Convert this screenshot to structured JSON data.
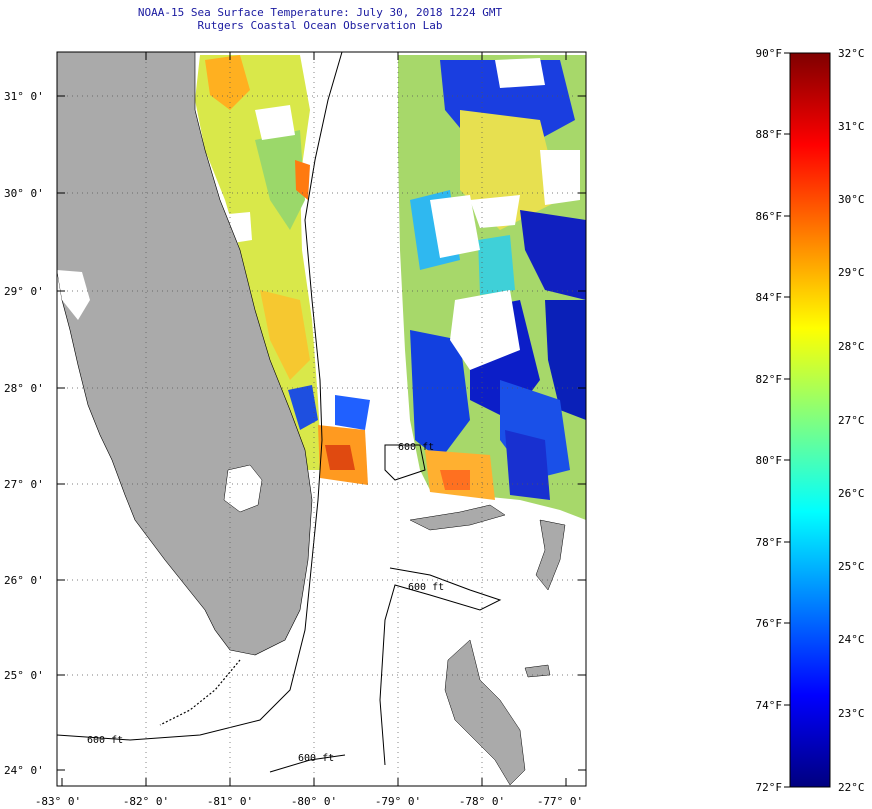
{
  "title": {
    "line1": "NOAA-15 Sea Surface Temperature:  July 30, 2018 1224 GMT",
    "line2": "Rutgers Coastal Ocean Observation Lab"
  },
  "map": {
    "lon_labels": [
      "-83° 0'",
      "-82° 0'",
      "-81° 0'",
      "-80° 0'",
      "-79° 0'",
      "-78° 0'",
      "-77° 0'"
    ],
    "lat_labels": [
      "31° 0'",
      "30° 0'",
      "29° 0'",
      "28° 0'",
      "27° 0'",
      "26° 0'",
      "25° 0'",
      "24° 0'"
    ],
    "isobath_labels": [
      "600 ft",
      "600 ft",
      "600 ft",
      "600 ft"
    ],
    "land_color": "#aaaaaa",
    "cloud_color": "#ffffff"
  },
  "colorbar": {
    "f_labels": [
      "90°F",
      "88°F",
      "86°F",
      "84°F",
      "82°F",
      "80°F",
      "78°F",
      "76°F",
      "74°F",
      "72°F"
    ],
    "c_labels": [
      "32°C",
      "31°C",
      "30°C",
      "29°C",
      "28°C",
      "27°C",
      "26°C",
      "25°C",
      "24°C",
      "23°C",
      "22°C"
    ],
    "f_range": [
      72,
      90
    ],
    "c_range": [
      22,
      32
    ],
    "colors": [
      "#00007f",
      "#0000ff",
      "#0080ff",
      "#00ffff",
      "#80ff80",
      "#ffff00",
      "#ff8000",
      "#ff0000",
      "#7f0000"
    ]
  }
}
